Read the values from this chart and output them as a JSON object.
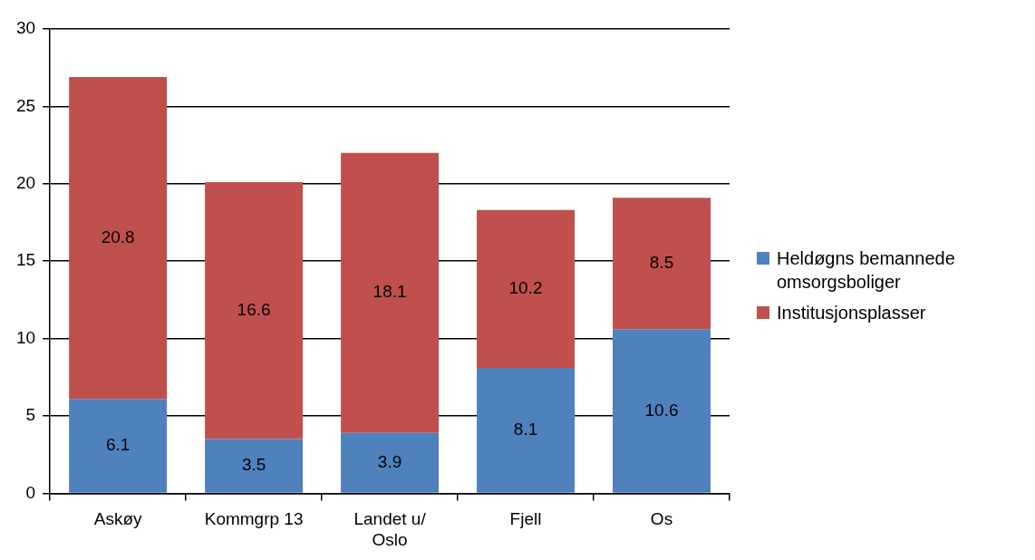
{
  "chart_data": {
    "type": "bar",
    "stacked": true,
    "categories": [
      "Askøy",
      "Kommgrp 13",
      "Landet u/ Oslo",
      "Fjell",
      "Os"
    ],
    "series": [
      {
        "name": "Heldøgns bemannede omsorgsboliger",
        "color": "#4f81bd",
        "values": [
          6.1,
          3.5,
          3.9,
          8.1,
          10.6
        ]
      },
      {
        "name": "Institusjonsplasser",
        "color": "#c0504d",
        "values": [
          20.8,
          16.6,
          18.1,
          10.2,
          8.5
        ]
      }
    ],
    "ylim": [
      0,
      30
    ],
    "yticks": [
      0,
      5,
      10,
      15,
      20,
      25,
      30
    ],
    "grid": "y",
    "legend": "right",
    "data_labels": true
  }
}
